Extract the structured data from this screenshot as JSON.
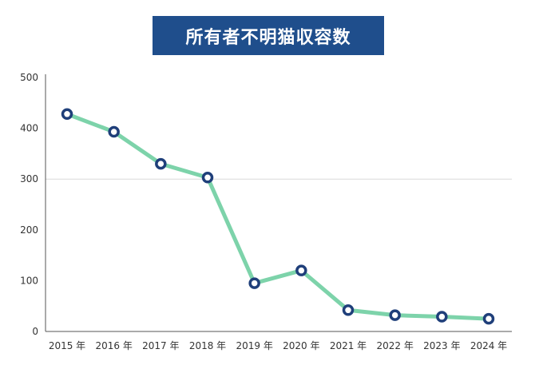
{
  "title": "所有者不明猫収容数",
  "colors": {
    "title_bg": "#1f4e8c",
    "line": "#7dd3aa",
    "marker_stroke": "#1f3f7a",
    "marker_fill": "#ffffff",
    "grid": "#d9d9d9",
    "axis": "#555555"
  },
  "chart_data": {
    "type": "line",
    "title": "所有者不明猫収容数",
    "xlabel": "",
    "ylabel": "",
    "categories": [
      "2015 年",
      "2016 年",
      "2017 年",
      "2018 年",
      "2019 年",
      "2020 年",
      "2021 年",
      "2022 年",
      "2023 年",
      "2024 年"
    ],
    "series": [
      {
        "values": [
          428,
          393,
          330,
          303,
          95,
          120,
          42,
          32,
          29,
          25
        ]
      }
    ],
    "ylim": [
      0,
      500
    ],
    "yticks": [
      0,
      100,
      200,
      300,
      400,
      500
    ],
    "grid": "horizontal line at 300 only",
    "legend": "none"
  }
}
